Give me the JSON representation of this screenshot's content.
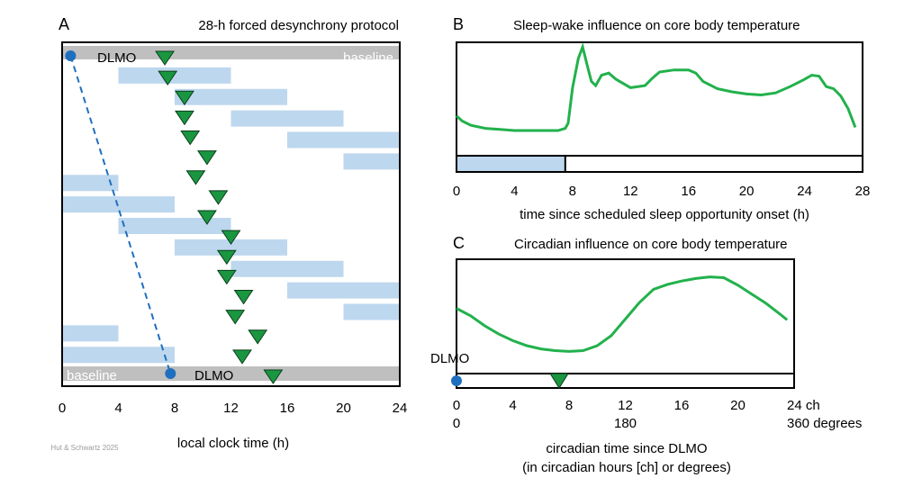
{
  "credit": "Hut & Schwartz 2025",
  "panel_a": {
    "label": "A",
    "title": "28-h forced desynchrony protocol",
    "baseline_label": "baseline",
    "dlmo_label": "DLMO",
    "x_ticks": [
      "0",
      "4",
      "8",
      "12",
      "16",
      "20",
      "24"
    ],
    "x_axis_label": "local clock time (h)",
    "colors": {
      "sleep": "#bdd7ee",
      "baseline": "#bfbfbf",
      "marker": "#1a9641",
      "dlmo": "#1f6fbf"
    }
  },
  "panel_b": {
    "label": "B",
    "title": "Sleep-wake influence on core body temperature",
    "x_ticks": [
      "0",
      "4",
      "8",
      "12",
      "16",
      "20",
      "24",
      "28"
    ],
    "x_axis_label": "time since scheduled sleep opportunity onset (h)"
  },
  "panel_c": {
    "label": "C",
    "title": "Circadian influence on core body temperature",
    "dlmo_label": "DLMO",
    "x_ticks_ch": [
      "0",
      "4",
      "8",
      "12",
      "16",
      "20"
    ],
    "x_end_ch": "24 ch",
    "x_ticks_deg": [
      "0",
      "180"
    ],
    "x_end_deg": "360 degrees",
    "x_axis_label_1": "circadian time since DLMO",
    "x_axis_label_2": "(in circadian hours [ch] or degrees)"
  },
  "chart_data": [
    {
      "panel": "A",
      "type": "table",
      "x_unit": "local clock time (h)",
      "xlim": [
        0,
        24
      ],
      "baseline_rows": [
        "first",
        "last"
      ],
      "sleep_episodes": [
        [
          {
            "start": 4,
            "end": 12
          }
        ],
        [
          {
            "start": 8,
            "end": 16
          }
        ],
        [
          {
            "start": 12,
            "end": 20
          }
        ],
        [
          {
            "start": 16,
            "end": 24
          }
        ],
        [
          {
            "start": 20,
            "end": 24
          }
        ],
        [
          {
            "start": 0,
            "end": 4
          }
        ],
        [
          {
            "start": 0,
            "end": 8
          }
        ],
        [
          {
            "start": 4,
            "end": 12
          }
        ],
        [
          {
            "start": 8,
            "end": 16
          }
        ],
        [
          {
            "start": 12,
            "end": 20
          }
        ],
        [
          {
            "start": 16,
            "end": 24
          }
        ],
        [
          {
            "start": 20,
            "end": 24
          }
        ],
        [
          {
            "start": 0,
            "end": 4
          }
        ],
        [
          {
            "start": 0,
            "end": 8
          }
        ]
      ],
      "dlmo_markers": [
        7.3,
        7.5,
        8.7,
        8.7,
        9.1,
        10.3,
        9.5,
        11.1,
        10.3,
        12.0,
        11.7,
        11.7,
        12.9,
        12.3,
        13.9,
        12.8,
        15.0
      ],
      "dlmo_drift_line": {
        "start": 0.6,
        "end": 7.7
      }
    },
    {
      "panel": "B",
      "type": "line",
      "xlabel": "time since scheduled sleep opportunity onset (h)",
      "xlim": [
        0,
        28
      ],
      "sleep_opportunity": {
        "start": 0,
        "end": 7.5
      },
      "x": [
        0,
        0.4,
        1,
        2,
        3,
        4,
        5,
        6,
        7,
        7.5,
        7.7,
        8,
        8.4,
        8.7,
        9,
        9.3,
        9.6,
        10,
        10.5,
        11,
        12,
        13,
        13.5,
        14,
        15,
        16,
        16.5,
        17,
        18,
        19,
        20,
        21,
        22,
        23,
        24,
        24.5,
        25,
        25.5,
        26,
        26.5,
        27,
        27.5
      ],
      "y": [
        0.33,
        0.28,
        0.24,
        0.21,
        0.2,
        0.19,
        0.19,
        0.19,
        0.19,
        0.21,
        0.26,
        0.6,
        0.88,
        0.99,
        0.82,
        0.66,
        0.62,
        0.72,
        0.74,
        0.68,
        0.6,
        0.62,
        0.69,
        0.75,
        0.77,
        0.77,
        0.74,
        0.66,
        0.59,
        0.56,
        0.54,
        0.53,
        0.55,
        0.61,
        0.68,
        0.72,
        0.71,
        0.61,
        0.59,
        0.52,
        0.4,
        0.22
      ]
    },
    {
      "panel": "C",
      "type": "line",
      "xlabel": "circadian time since DLMO (in circadian hours [ch] or degrees)",
      "xlim": [
        0,
        24
      ],
      "x": [
        0,
        1,
        2,
        3,
        4,
        5,
        6,
        7,
        8,
        9,
        10,
        11,
        12,
        13,
        14,
        15,
        16,
        17,
        18,
        19,
        20,
        21,
        22,
        23,
        23.5
      ],
      "y": [
        0.57,
        0.48,
        0.36,
        0.26,
        0.18,
        0.12,
        0.08,
        0.06,
        0.05,
        0.06,
        0.12,
        0.24,
        0.44,
        0.64,
        0.8,
        0.86,
        0.9,
        0.93,
        0.95,
        0.94,
        0.85,
        0.74,
        0.63,
        0.5,
        0.43
      ],
      "dlmo_at": 0,
      "marker_at": 7.3
    }
  ]
}
